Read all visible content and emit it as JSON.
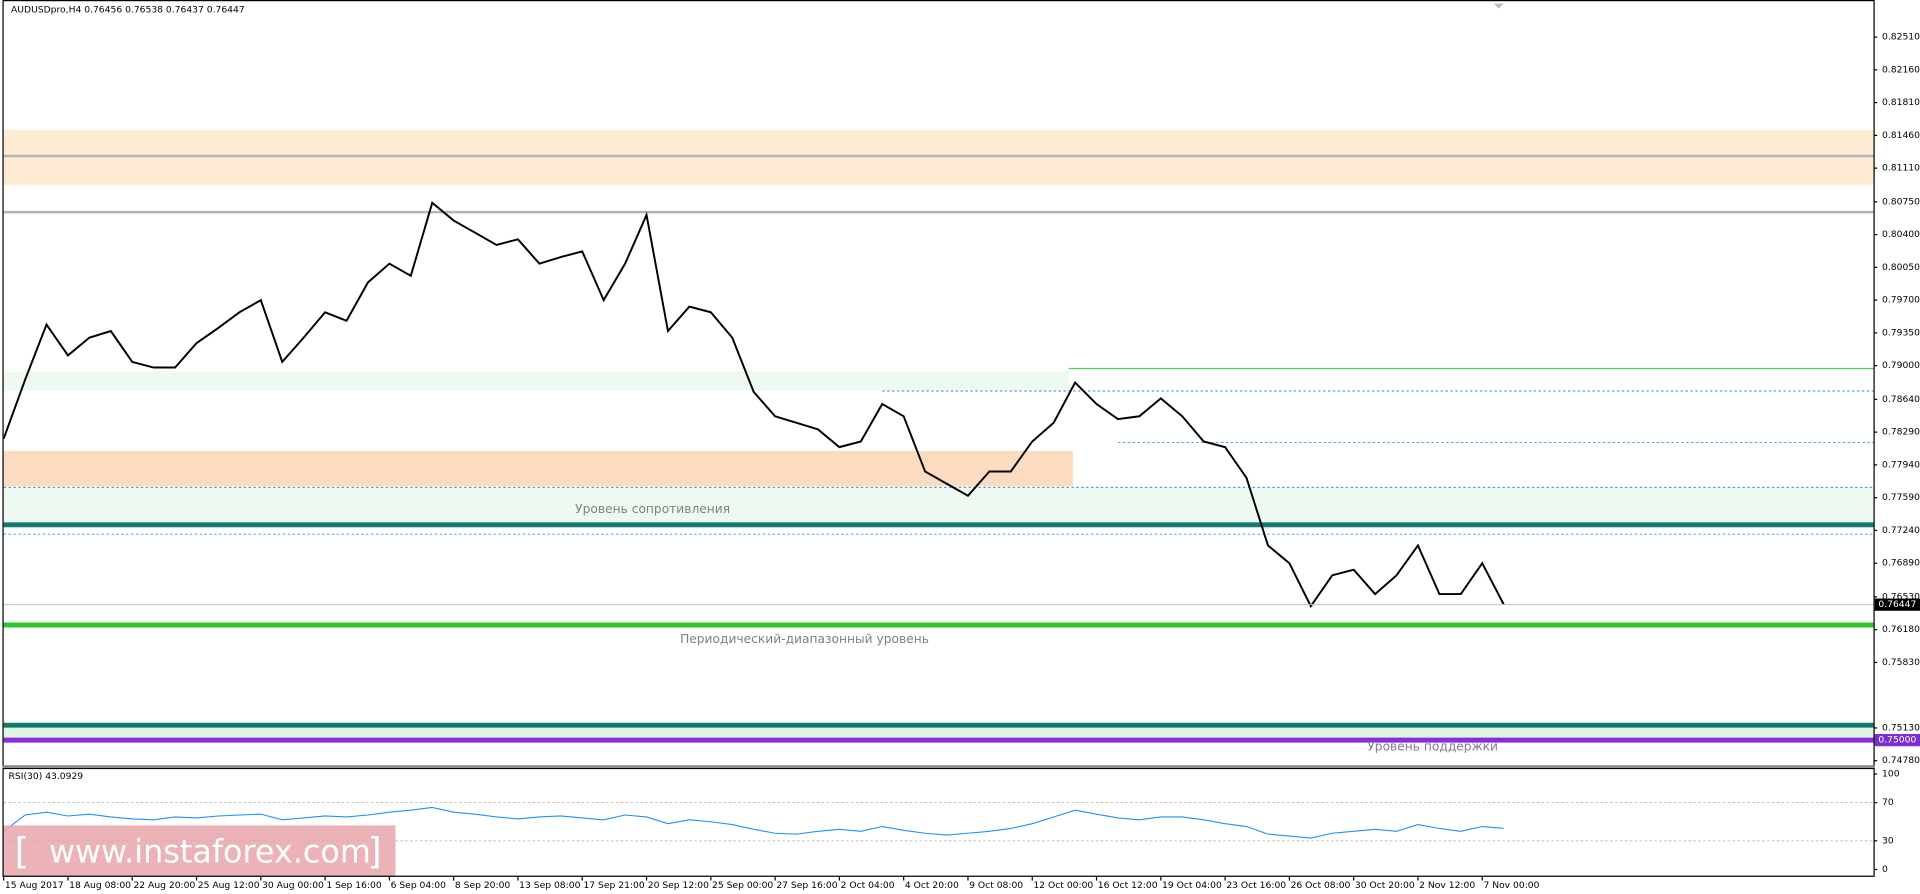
{
  "chart_data": [
    {
      "type": "line",
      "title": "AUDUSDpro,H4  0.76456 0.76538 0.76437 0.76447",
      "categories": [
        "15 Aug 2017",
        null,
        null,
        "18 Aug 08:00",
        null,
        null,
        "22 Aug 20:00",
        null,
        null,
        "25 Aug 12:00",
        null,
        null,
        "30 Aug 00:00",
        null,
        null,
        "1 Sep 16:00",
        null,
        null,
        "6 Sep 04:00",
        null,
        null,
        "8 Sep 20:00",
        null,
        null,
        "13 Sep 08:00",
        null,
        null,
        "17 Sep 21:00",
        null,
        null,
        "20 Sep 12:00",
        null,
        null,
        "25 Sep 00:00",
        null,
        null,
        "27 Sep 16:00",
        null,
        null,
        "2 Oct 04:00",
        null,
        null,
        "4 Oct 20:00",
        null,
        null,
        "9 Oct 08:00",
        null,
        null,
        "12 Oct 00:00",
        null,
        null,
        "16 Oct 12:00",
        null,
        null,
        "19 Oct 04:00",
        null,
        null,
        "23 Oct 16:00",
        null,
        null,
        "26 Oct 08:00",
        null,
        null,
        "30 Oct 20:00",
        null,
        null,
        "2 Nov 12:00",
        null,
        null,
        "7 Nov 00:00",
        null,
        null
      ],
      "values": [
        0.7822,
        0.7885,
        0.7944,
        0.7911,
        0.793,
        0.7937,
        0.7904,
        0.7898,
        0.7898,
        0.7924,
        0.794,
        0.7957,
        0.797,
        0.7904,
        0.793,
        0.7957,
        0.7948,
        0.7989,
        0.8009,
        0.7996,
        0.8074,
        0.8055,
        0.8042,
        0.8029,
        0.8035,
        0.8009,
        0.8016,
        0.8022,
        0.797,
        0.8009,
        0.8061,
        0.7937,
        0.7963,
        0.7957,
        0.793,
        0.7872,
        0.7846,
        0.7839,
        0.7832,
        0.7813,
        0.7819,
        0.7859,
        0.7846,
        0.7787,
        0.7774,
        0.7761,
        0.7787,
        0.7787,
        0.7819,
        0.7839,
        0.7882,
        0.7859,
        0.7843,
        0.7846,
        0.7865,
        0.7846,
        0.7819,
        0.7813,
        0.778,
        0.7708,
        0.7689,
        0.7643,
        0.7676,
        0.7682,
        0.7656,
        0.7676,
        0.7708,
        0.7656,
        0.7656,
        0.7689,
        0.7645,
        null
      ],
      "color": "#000000",
      "ylim": [
        0.7473,
        0.8288
      ],
      "yticks": [
        {
          "value": 0.8251,
          "label": "0.82510"
        },
        {
          "value": 0.8216,
          "label": "0.82160"
        },
        {
          "value": 0.8181,
          "label": "0.81810"
        },
        {
          "value": 0.8146,
          "label": "0.81460"
        },
        {
          "value": 0.8111,
          "label": "0.81110"
        },
        {
          "value": 0.8075,
          "label": "0.80750"
        },
        {
          "value": 0.804,
          "label": "0.80400"
        },
        {
          "value": 0.8005,
          "label": "0.80050"
        },
        {
          "value": 0.797,
          "label": "0.79700"
        },
        {
          "value": 0.7935,
          "label": "0.79350"
        },
        {
          "value": 0.79,
          "label": "0.79000"
        },
        {
          "value": 0.7864,
          "label": "0.78640"
        },
        {
          "value": 0.7829,
          "label": "0.78290"
        },
        {
          "value": 0.7794,
          "label": "0.77940"
        },
        {
          "value": 0.7759,
          "label": "0.77590"
        },
        {
          "value": 0.7724,
          "label": "0.77240"
        },
        {
          "value": 0.7689,
          "label": "0.76890"
        },
        {
          "value": 0.7653,
          "label": "0.76530"
        },
        {
          "value": 0.7618,
          "label": "0.76180"
        },
        {
          "value": 0.7583,
          "label": "0.75830"
        },
        {
          "value": 0.7513,
          "label": "0.75130"
        },
        {
          "value": 0.7478,
          "label": "0.74780"
        }
      ],
      "price_labels": [
        {
          "value": 0.76447,
          "label": "0.76447",
          "color": "#000000"
        },
        {
          "value": 0.75,
          "label": "0.75000",
          "color": "#7b2fd0"
        }
      ],
      "zones": [
        {
          "range": [
            0.8093,
            0.8152
          ],
          "color": "#fdebd3"
        },
        {
          "range": [
            0.7873,
            0.7894
          ],
          "color": "#eefaf1",
          "end": 49.7
        },
        {
          "range": [
            0.7771,
            0.7809
          ],
          "color": "#fcdcc0",
          "end": 49.9
        },
        {
          "range": [
            0.773,
            0.777
          ],
          "color": "#eefaf1"
        },
        {
          "range": [
            0.75,
            0.7516
          ],
          "color": "#dff5e4"
        }
      ],
      "levels": [
        {
          "value": 0.8124,
          "color": "#b4b4b4",
          "style": "thick"
        },
        {
          "value": 0.8064,
          "color": "#b4b4b4",
          "style": "thick"
        },
        {
          "value": 0.7897,
          "color": "#4ccf4c",
          "style": "thin",
          "start": 49.7
        },
        {
          "value": 0.7873,
          "color": "#3a8ee6",
          "style": "dotted",
          "start": 41
        },
        {
          "value": 0.7818,
          "color": "#3a8ee6",
          "style": "dotted",
          "start": 52
        },
        {
          "value": 0.777,
          "color": "#3a8ee6",
          "style": "dotted"
        },
        {
          "value": 0.772,
          "color": "#3a8ee6",
          "style": "dotted"
        },
        {
          "value": 0.773,
          "color": "#137a70",
          "style": "heavy"
        },
        {
          "value": 0.7623,
          "color": "#2ec62e",
          "style": "heavy"
        },
        {
          "value": 0.7516,
          "color": "#137a70",
          "style": "heavy"
        },
        {
          "value": 0.75,
          "color": "#8a2be2",
          "style": "heavy"
        }
      ],
      "annotations": [
        "Уровень сопротивления",
        "Периодический-диапазонный уровень",
        "Уровень поддержки"
      ],
      "watermark": [
        "[",
        "www.instaforex.com",
        "]"
      ]
    },
    {
      "type": "line",
      "title": "RSI(30) 43.0929",
      "values": [
        40,
        57,
        60,
        56,
        58,
        55,
        53,
        52,
        55,
        54,
        56,
        57,
        58,
        52,
        54,
        56,
        55,
        57,
        60,
        62,
        65,
        60,
        58,
        55,
        53,
        55,
        56,
        54,
        52,
        57,
        55,
        48,
        52,
        50,
        47,
        42,
        38,
        37,
        40,
        42,
        40,
        45,
        41,
        38,
        36,
        38,
        40,
        43,
        48,
        55,
        62,
        58,
        54,
        52,
        55,
        55,
        52,
        48,
        45,
        37,
        35,
        33,
        38,
        40,
        42,
        40,
        47,
        43,
        40,
        45,
        43.0929,
        null
      ],
      "color": "#1e90ff",
      "ylim": [
        0,
        100
      ],
      "yticks": [
        100,
        70,
        30,
        0
      ],
      "grid_levels": [
        70,
        30
      ]
    }
  ]
}
